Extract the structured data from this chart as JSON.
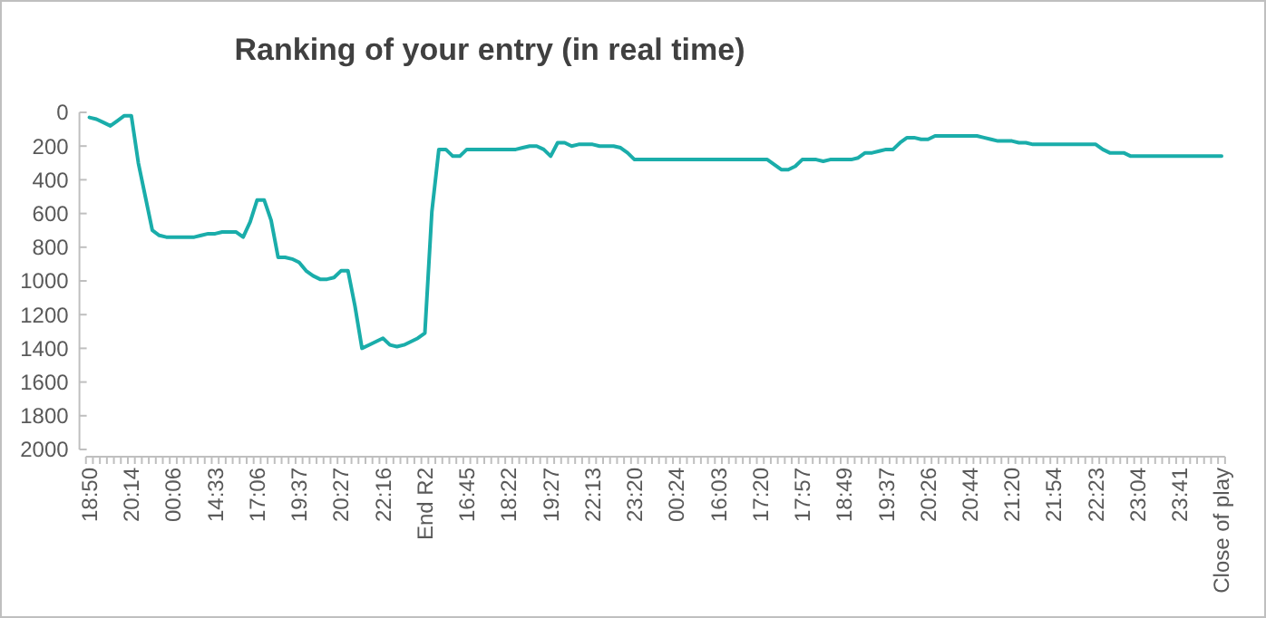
{
  "chart_data": {
    "type": "line",
    "title": "Ranking of your entry (in real time)",
    "categories": [
      "18:50",
      null,
      null,
      null,
      null,
      null,
      "20:14",
      null,
      null,
      null,
      null,
      null,
      "00:06",
      null,
      null,
      null,
      null,
      null,
      "14:33",
      null,
      null,
      null,
      null,
      null,
      "17:06",
      null,
      null,
      null,
      null,
      null,
      "19:37",
      null,
      null,
      null,
      null,
      null,
      "20:27",
      null,
      null,
      null,
      null,
      null,
      "22:16",
      null,
      null,
      null,
      null,
      null,
      "End R2",
      null,
      null,
      null,
      null,
      null,
      "16:45",
      null,
      null,
      null,
      null,
      null,
      "18:22",
      null,
      null,
      null,
      null,
      null,
      "19:27",
      null,
      null,
      null,
      null,
      null,
      "22:13",
      null,
      null,
      null,
      null,
      null,
      "23:20",
      null,
      null,
      null,
      null,
      null,
      "00:24",
      null,
      null,
      null,
      null,
      null,
      "16:03",
      null,
      null,
      null,
      null,
      null,
      "17:20",
      null,
      null,
      null,
      null,
      null,
      "17:57",
      null,
      null,
      null,
      null,
      null,
      "18:49",
      null,
      null,
      null,
      null,
      null,
      "19:37",
      null,
      null,
      null,
      null,
      null,
      "20:26",
      null,
      null,
      null,
      null,
      null,
      "20:44",
      null,
      null,
      null,
      null,
      null,
      "21:20",
      null,
      null,
      null,
      null,
      null,
      "21:54",
      null,
      null,
      null,
      null,
      null,
      "22:23",
      null,
      null,
      null,
      null,
      null,
      "23:04",
      null,
      null,
      null,
      null,
      null,
      "23:41",
      null,
      null,
      null,
      null,
      null,
      "Close of play"
    ],
    "series": [
      {
        "color": "#1aadaa",
        "values": [
          30,
          40,
          60,
          80,
          50,
          20,
          20,
          300,
          500,
          700,
          730,
          740,
          740,
          740,
          740,
          740,
          730,
          720,
          720,
          710,
          710,
          710,
          740,
          650,
          520,
          520,
          640,
          860,
          860,
          870,
          890,
          940,
          970,
          990,
          990,
          980,
          940,
          940,
          1150,
          1400,
          1380,
          1360,
          1340,
          1380,
          1390,
          1380,
          1360,
          1340,
          1310,
          590,
          220,
          220,
          260,
          260,
          220,
          220,
          220,
          220,
          220,
          220,
          220,
          220,
          210,
          200,
          200,
          220,
          260,
          180,
          180,
          200,
          190,
          190,
          190,
          200,
          200,
          200,
          210,
          240,
          280,
          280,
          280,
          280,
          280,
          280,
          280,
          280,
          280,
          280,
          280,
          280,
          280,
          280,
          280,
          280,
          280,
          280,
          280,
          280,
          310,
          340,
          340,
          320,
          280,
          280,
          280,
          290,
          280,
          280,
          280,
          280,
          270,
          240,
          240,
          230,
          220,
          220,
          180,
          150,
          150,
          160,
          160,
          140,
          140,
          140,
          140,
          140,
          140,
          140,
          150,
          160,
          170,
          170,
          170,
          180,
          180,
          190,
          190,
          190,
          190,
          190,
          190,
          190,
          190,
          190,
          190,
          220,
          240,
          240,
          240,
          260,
          260,
          260,
          260,
          260,
          260,
          260,
          260,
          260,
          260,
          260,
          260,
          260,
          260
        ]
      }
    ],
    "ylim": [
      2000,
      0
    ],
    "yticks": [
      0,
      200,
      400,
      600,
      800,
      1000,
      1200,
      1400,
      1600,
      1800,
      2000
    ],
    "grid": false
  }
}
